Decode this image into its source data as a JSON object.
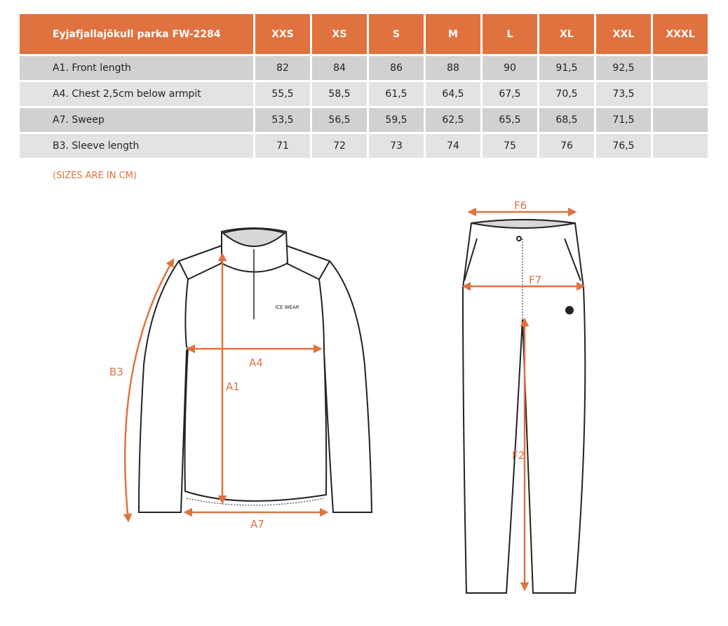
{
  "table": {
    "header": [
      "Eyjafjallajökull parka FW-2284",
      "XXS",
      "XS",
      "S",
      "M",
      "L",
      "XL",
      "XXL",
      "XXXL"
    ],
    "rows": [
      [
        "A1. Front length",
        "82",
        "84",
        "86",
        "88",
        "90",
        "91,5",
        "92,5",
        ""
      ],
      [
        "A4. Chest 2,5cm below armpit",
        "55,5",
        "58,5",
        "61,5",
        "64,5",
        "67,5",
        "70,5",
        "73,5",
        ""
      ],
      [
        "A7. Sweep",
        "53,5",
        "56,5",
        "59,5",
        "62,5",
        "65,5",
        "68,5",
        "71,5",
        ""
      ],
      [
        "B3. Sleeve length",
        "71",
        "72",
        "73",
        "74",
        "75",
        "76",
        "76,5",
        ""
      ]
    ]
  },
  "note": "(SIZES ARE IN CM)",
  "diagram": {
    "jacket_labels": {
      "b3": "B3",
      "a4": "A4",
      "a1": "A1",
      "a7": "A7"
    },
    "pants_labels": {
      "f6": "F6",
      "f7": "F7",
      "f2": "F2"
    },
    "logo": "ICE WEAR",
    "accent": "#E07240"
  }
}
